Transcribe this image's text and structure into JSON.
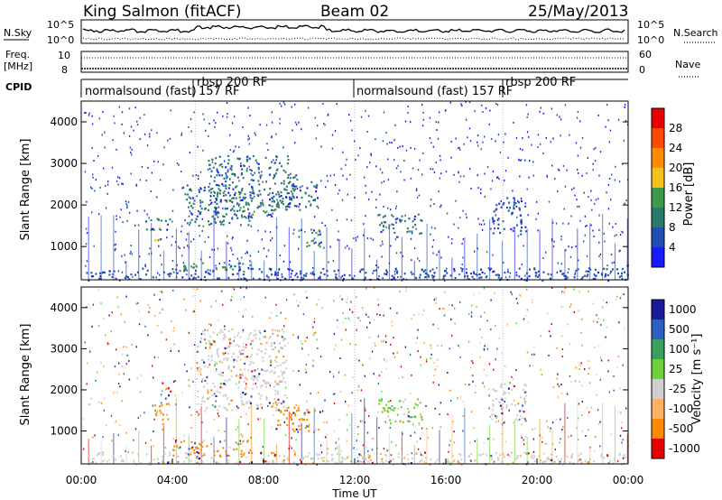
{
  "header": {
    "station": "King Salmon (fitACF)",
    "beam": "Beam 02",
    "date": "25/May/2013"
  },
  "strip_labels": {
    "nsky": "N.Sky",
    "nsearch": "N.Search",
    "freq_line1": "Freq.",
    "freq_line2": "[MHz]",
    "nave": "Nave",
    "cpid": "CPID",
    "left_top_tick": "10^5",
    "left_bottom_tick": "10^0",
    "right_top_tick": "10^5",
    "right_bottom_tick": "10^0",
    "freq_top_tick": "10",
    "freq_bottom_tick": "8",
    "nave_top_tick": "60",
    "nave_bottom_tick": "0"
  },
  "cpid_segments": [
    {
      "label": "normalsound (fast)",
      "start": 0.0
    },
    {
      "label": "rbsp 200 RF",
      "start": 5.0
    },
    {
      "label": "157 RF",
      "start": 5.0
    },
    {
      "label": "normalsound (fast) 157 RF",
      "start": 12.0
    },
    {
      "label": "rbsp 200 RF",
      "start": 18.5
    }
  ],
  "colors": {
    "power_scale": [
      "#1a1aff",
      "#1f4fb0",
      "#2a7a6a",
      "#3c9a4a",
      "#f4c21a",
      "#ff8c00",
      "#ff4a00",
      "#e60000"
    ],
    "velocity_scale": [
      "#1a1a9a",
      "#2a60c0",
      "#3aa060",
      "#6dcf3a",
      "#cfcfcf",
      "#ffb060",
      "#ff8a00",
      "#e60000"
    ]
  },
  "chart_data": [
    {
      "type": "heatmap",
      "name_panel": "power",
      "ylabel": "Slant Range [km]",
      "yticks": [
        "1000",
        "2000",
        "3000",
        "4000"
      ],
      "ylim": [
        200,
        4500
      ],
      "xlim": [
        0,
        24
      ],
      "colorbar_label": "Power [dB]",
      "colorbar_ticks": [
        "4",
        "8",
        "12",
        "16",
        "20",
        "24",
        "28"
      ],
      "features": [
        {
          "t_start": 0.1,
          "t_end": 24.0,
          "r_start": 200,
          "r_end": 500,
          "value": 6
        },
        {
          "t_start": 2.8,
          "t_end": 4.0,
          "r_start": 1400,
          "r_end": 1700,
          "value": 8
        },
        {
          "t_start": 3.2,
          "t_end": 3.5,
          "r_start": 1100,
          "r_end": 1500,
          "value": 18
        },
        {
          "t_start": 4.0,
          "t_end": 7.5,
          "r_start": 400,
          "r_end": 650,
          "value": 14
        },
        {
          "t_start": 4.3,
          "t_end": 7.5,
          "r_start": 1500,
          "r_end": 2500,
          "value": 10
        },
        {
          "t_start": 5.5,
          "t_end": 9.5,
          "r_start": 2000,
          "r_end": 3200,
          "value": 8
        },
        {
          "t_start": 6.5,
          "t_end": 8.5,
          "r_start": 1700,
          "r_end": 2000,
          "value": 14
        },
        {
          "t_start": 8.5,
          "t_end": 10.5,
          "r_start": 1900,
          "r_end": 2600,
          "value": 8
        },
        {
          "t_start": 9.5,
          "t_end": 10.5,
          "r_start": 1000,
          "r_end": 1500,
          "value": 12
        },
        {
          "t_start": 13.0,
          "t_end": 15.0,
          "r_start": 1300,
          "r_end": 1800,
          "value": 8
        },
        {
          "t_start": 18.0,
          "t_end": 19.5,
          "r_start": 1300,
          "r_end": 2200,
          "value": 6
        }
      ]
    },
    {
      "type": "heatmap",
      "name_panel": "velocity",
      "ylabel": "Slant Range [km]",
      "yticks": [
        "1000",
        "2000",
        "3000",
        "4000"
      ],
      "ylim": [
        200,
        4500
      ],
      "xlim": [
        0,
        24
      ],
      "xlabel": "Time UT",
      "xticks": [
        "00:00",
        "04:00",
        "08:00",
        "12:00",
        "16:00",
        "20:00",
        "00:00"
      ],
      "colorbar_label": "Velocity [m s⁻¹]",
      "colorbar_ticks": [
        "1000",
        "500",
        "100",
        "25",
        "-25",
        "-100",
        "-500",
        "-1000"
      ],
      "features": [
        {
          "t_start": 0.1,
          "t_end": 24.0,
          "r_start": 200,
          "r_end": 500,
          "value": 0
        },
        {
          "t_start": 3.2,
          "t_end": 3.8,
          "r_start": 1000,
          "r_end": 1700,
          "value": -400
        },
        {
          "t_start": 3.5,
          "t_end": 3.9,
          "r_start": 1800,
          "r_end": 2200,
          "value": -600
        },
        {
          "t_start": 4.0,
          "t_end": 7.5,
          "r_start": 400,
          "r_end": 800,
          "value": -300
        },
        {
          "t_start": 5.0,
          "t_end": 9.0,
          "r_start": 1500,
          "r_end": 3500,
          "value": 10
        },
        {
          "t_start": 8.5,
          "t_end": 10.5,
          "r_start": 1000,
          "r_end": 1600,
          "value": -400
        },
        {
          "t_start": 13.0,
          "t_end": 15.0,
          "r_start": 1200,
          "r_end": 1800,
          "value": 30
        },
        {
          "t_start": 18.0,
          "t_end": 19.5,
          "r_start": 1200,
          "r_end": 2200,
          "value": 0
        }
      ]
    }
  ]
}
